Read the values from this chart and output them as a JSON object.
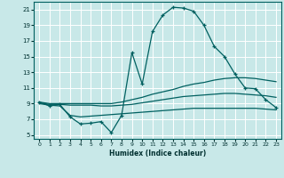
{
  "xlabel": "Humidex (Indice chaleur)",
  "bg_color": "#c8e8e8",
  "grid_color": "#ffffff",
  "line_color": "#006060",
  "xlim": [
    -0.5,
    23.5
  ],
  "ylim": [
    4.5,
    22
  ],
  "yticks": [
    5,
    7,
    9,
    11,
    13,
    15,
    17,
    19,
    21
  ],
  "xticks": [
    0,
    1,
    2,
    3,
    4,
    5,
    6,
    7,
    8,
    9,
    10,
    11,
    12,
    13,
    14,
    15,
    16,
    17,
    18,
    19,
    20,
    21,
    22,
    23
  ],
  "line1_x": [
    0,
    1,
    2,
    3,
    4,
    5,
    6,
    7,
    8,
    9,
    10,
    11,
    12,
    13,
    14,
    15,
    16,
    17,
    18,
    19,
    20,
    21,
    22,
    23
  ],
  "line1_y": [
    9.2,
    8.7,
    8.9,
    7.3,
    6.4,
    6.5,
    6.7,
    5.3,
    7.5,
    15.5,
    11.5,
    18.2,
    20.3,
    21.3,
    21.2,
    20.8,
    19.0,
    16.3,
    15.0,
    12.8,
    11.0,
    10.9,
    9.5,
    8.5
  ],
  "line2_x": [
    0,
    1,
    2,
    3,
    4,
    5,
    6,
    7,
    8,
    9,
    10,
    11,
    12,
    13,
    14,
    15,
    16,
    17,
    18,
    19,
    20,
    21,
    22,
    23
  ],
  "line2_y": [
    9.2,
    9.0,
    9.0,
    9.0,
    9.0,
    9.0,
    9.0,
    9.0,
    9.2,
    9.5,
    9.8,
    10.2,
    10.5,
    10.8,
    11.2,
    11.5,
    11.7,
    12.0,
    12.2,
    12.3,
    12.3,
    12.2,
    12.0,
    11.8
  ],
  "line3_x": [
    0,
    1,
    2,
    3,
    4,
    5,
    6,
    7,
    8,
    9,
    10,
    11,
    12,
    13,
    14,
    15,
    16,
    17,
    18,
    19,
    20,
    21,
    22,
    23
  ],
  "line3_y": [
    9.1,
    8.9,
    8.9,
    8.8,
    8.8,
    8.8,
    8.7,
    8.7,
    8.8,
    8.9,
    9.1,
    9.3,
    9.5,
    9.7,
    9.9,
    10.0,
    10.1,
    10.2,
    10.3,
    10.3,
    10.2,
    10.1,
    10.0,
    9.8
  ],
  "line4_x": [
    0,
    1,
    2,
    3,
    4,
    5,
    6,
    7,
    8,
    9,
    10,
    11,
    12,
    13,
    14,
    15,
    16,
    17,
    18,
    19,
    20,
    21,
    22,
    23
  ],
  "line4_y": [
    9.0,
    8.8,
    8.7,
    7.5,
    7.3,
    7.4,
    7.5,
    7.6,
    7.7,
    7.8,
    7.9,
    8.0,
    8.1,
    8.2,
    8.3,
    8.4,
    8.4,
    8.4,
    8.4,
    8.4,
    8.4,
    8.4,
    8.3,
    8.2
  ]
}
